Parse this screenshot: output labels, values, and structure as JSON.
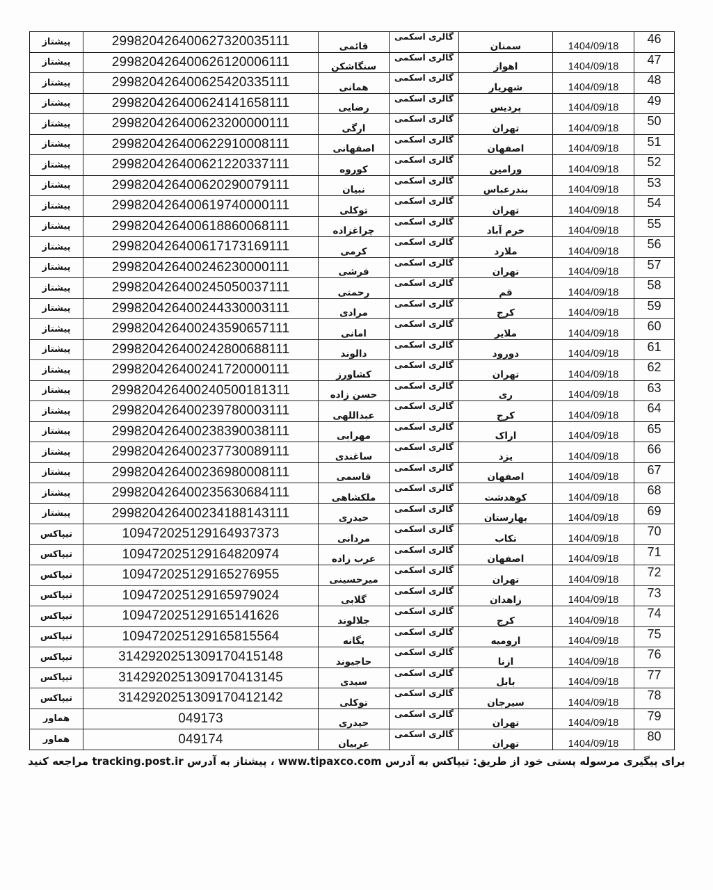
{
  "document": {
    "language": "fa",
    "direction": "rtl",
    "kind": "postal-shipment-tracking-list"
  },
  "table": {
    "rows": [
      {
        "num": "46",
        "date": "1404/09/18",
        "city": "سمنان",
        "sender": "گالری اسکمی",
        "name": "قائمی",
        "code": "299820426400627320035111",
        "service": "پیشتاز"
      },
      {
        "num": "47",
        "date": "1404/09/18",
        "city": "اهواز",
        "sender": "گالری اسکمی",
        "name": "سنگاشکن",
        "code": "299820426400626120006111",
        "service": "پیشتاز"
      },
      {
        "num": "48",
        "date": "1404/09/18",
        "city": "شهریار",
        "sender": "گالری اسکمی",
        "name": "همانی",
        "code": "299820426400625420335111",
        "service": "پیشتاز"
      },
      {
        "num": "49",
        "date": "1404/09/18",
        "city": "پردیس",
        "sender": "گالری اسکمی",
        "name": "رضایی",
        "code": "299820426400624141658111",
        "service": "پیشتاز"
      },
      {
        "num": "50",
        "date": "1404/09/18",
        "city": "تهران",
        "sender": "گالری اسکمی",
        "name": "ارگی",
        "code": "299820426400623200000111",
        "service": "پیشتاز"
      },
      {
        "num": "51",
        "date": "1404/09/18",
        "city": "اصفهان",
        "sender": "گالری اسکمی",
        "name": "اصفهانی",
        "code": "299820426400622910008111",
        "service": "پیشتاز"
      },
      {
        "num": "52",
        "date": "1404/09/18",
        "city": "ورامین",
        "sender": "گالری اسکمی",
        "name": "کوروه",
        "code": "299820426400621220337111",
        "service": "پیشتاز"
      },
      {
        "num": "53",
        "date": "1404/09/18",
        "city": "بندرعباس",
        "sender": "گالری اسکمی",
        "name": "نبیان",
        "code": "299820426400620290079111",
        "service": "پیشتاز"
      },
      {
        "num": "54",
        "date": "1404/09/18",
        "city": "تهران",
        "sender": "گالری اسکمی",
        "name": "توکلی",
        "code": "299820426400619740000111",
        "service": "پیشتاز"
      },
      {
        "num": "55",
        "date": "1404/09/18",
        "city": "خرم آباد",
        "sender": "گالری اسکمی",
        "name": "چراغزاده",
        "code": "299820426400618860068111",
        "service": "پیشتاز"
      },
      {
        "num": "56",
        "date": "1404/09/18",
        "city": "ملارد",
        "sender": "گالری اسکمی",
        "name": "کرمی",
        "code": "299820426400617173169111",
        "service": "پیشتاز"
      },
      {
        "num": "57",
        "date": "1404/09/18",
        "city": "تهران",
        "sender": "گالری اسکمی",
        "name": "فرشی",
        "code": "299820426400246230000111",
        "service": "پیشتاز"
      },
      {
        "num": "58",
        "date": "1404/09/18",
        "city": "قم",
        "sender": "گالری اسکمی",
        "name": "رحمتی",
        "code": "299820426400245050037111",
        "service": "پیشتاز"
      },
      {
        "num": "59",
        "date": "1404/09/18",
        "city": "کرج",
        "sender": "گالری اسکمی",
        "name": "مرادی",
        "code": "299820426400244330003111",
        "service": "پیشتاز"
      },
      {
        "num": "60",
        "date": "1404/09/18",
        "city": "ملایر",
        "sender": "گالری اسکمی",
        "name": "امانی",
        "code": "299820426400243590657111",
        "service": "پیشتاز"
      },
      {
        "num": "61",
        "date": "1404/09/18",
        "city": "دورود",
        "sender": "گالری اسکمی",
        "name": "دالوند",
        "code": "299820426400242800688111",
        "service": "پیشتاز"
      },
      {
        "num": "62",
        "date": "1404/09/18",
        "city": "تهران",
        "sender": "گالری اسکمی",
        "name": "کشاورز",
        "code": "299820426400241720000111",
        "service": "پیشتاز"
      },
      {
        "num": "63",
        "date": "1404/09/18",
        "city": "ری",
        "sender": "گالری اسکمی",
        "name": "حسن زاده",
        "code": "299820426400240500181311",
        "service": "پیشتاز"
      },
      {
        "num": "64",
        "date": "1404/09/18",
        "city": "کرج",
        "sender": "گالری اسکمی",
        "name": "عبداللهی",
        "code": "299820426400239780003111",
        "service": "پیشتاز"
      },
      {
        "num": "65",
        "date": "1404/09/18",
        "city": "اراک",
        "sender": "گالری اسکمی",
        "name": "مهرابی",
        "code": "299820426400238390038111",
        "service": "پیشتاز"
      },
      {
        "num": "66",
        "date": "1404/09/18",
        "city": "یزد",
        "sender": "گالری اسکمی",
        "name": "ساغندی",
        "code": "299820426400237730089111",
        "service": "پیشتاز"
      },
      {
        "num": "67",
        "date": "1404/09/18",
        "city": "اصفهان",
        "sender": "گالری اسکمی",
        "name": "قاسمی",
        "code": "299820426400236980008111",
        "service": "پیشتاز"
      },
      {
        "num": "68",
        "date": "1404/09/18",
        "city": "کوهدشت",
        "sender": "گالری اسکمی",
        "name": "ملکشاهی",
        "code": "299820426400235630684111",
        "service": "پیشتاز"
      },
      {
        "num": "69",
        "date": "1404/09/18",
        "city": "بهارستان",
        "sender": "گالری اسکمی",
        "name": "حیدری",
        "code": "299820426400234188143111",
        "service": "پیشتاز"
      },
      {
        "num": "70",
        "date": "1404/09/18",
        "city": "تکاب",
        "sender": "گالری اسکمی",
        "name": "مردانی",
        "code": "109472025129164937373",
        "service": "تیپاکس"
      },
      {
        "num": "71",
        "date": "1404/09/18",
        "city": "اصفهان",
        "sender": "گالری اسکمی",
        "name": "عرب زاده",
        "code": "109472025129164820974",
        "service": "تیپاکس"
      },
      {
        "num": "72",
        "date": "1404/09/18",
        "city": "تهران",
        "sender": "گالری اسکمی",
        "name": "میرحسینی",
        "code": "109472025129165276955",
        "service": "تیپاکس"
      },
      {
        "num": "73",
        "date": "1404/09/18",
        "city": "زاهدان",
        "sender": "گالری اسکمی",
        "name": "گلابی",
        "code": "109472025129165979024",
        "service": "تیپاکس"
      },
      {
        "num": "74",
        "date": "1404/09/18",
        "city": "کرج",
        "sender": "گالری اسکمی",
        "name": "جلالوند",
        "code": "109472025129165141626",
        "service": "تیپاکس"
      },
      {
        "num": "75",
        "date": "1404/09/18",
        "city": "ارومیه",
        "sender": "گالری اسکمی",
        "name": "یگانه",
        "code": "109472025129165815564",
        "service": "تیپاکس"
      },
      {
        "num": "76",
        "date": "1404/09/18",
        "city": "ازنا",
        "sender": "گالری اسکمی",
        "name": "حاجیوند",
        "code": "3142920251309170415148",
        "service": "تیپاکس"
      },
      {
        "num": "77",
        "date": "1404/09/18",
        "city": "بابل",
        "sender": "گالری اسکمی",
        "name": "سیدی",
        "code": "3142920251309170413145",
        "service": "تیپاکس"
      },
      {
        "num": "78",
        "date": "1404/09/18",
        "city": "سیرجان",
        "sender": "گالری اسکمی",
        "name": "توکلی",
        "code": "3142920251309170412142",
        "service": "تیپاکس"
      },
      {
        "num": "79",
        "date": "1404/09/18",
        "city": "تهران",
        "sender": "گالری اسکمی",
        "name": "حیدری",
        "code": "049173",
        "service": "هماور"
      },
      {
        "num": "80",
        "date": "1404/09/18",
        "city": "تهران",
        "sender": "گالری اسکمی",
        "name": "عربیان",
        "code": "049174",
        "service": "هماور"
      }
    ]
  },
  "footer": {
    "text": "برای پیگیری مرسوله پستی خود از طریق: تیپاکس به آدرس www.tipaxco.com ، پیشتاز به آدرس tracking.post.ir  مراجعه کنید"
  }
}
